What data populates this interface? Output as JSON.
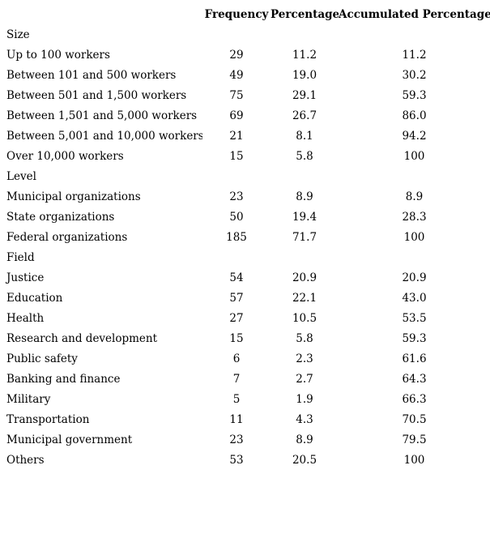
{
  "page": {
    "background_color": "#ffffff",
    "text_color": "#000000"
  },
  "table": {
    "columns": [
      "Frequency",
      "Percentage",
      "Accumulated Percentage"
    ],
    "sections": [
      {
        "label": "Size",
        "rows": [
          {
            "label": "Up to 100 workers",
            "frequency": "29",
            "percentage": "11.2",
            "accumulated": "11.2"
          },
          {
            "label": "Between 101 and 500 workers",
            "frequency": "49",
            "percentage": "19.0",
            "accumulated": "30.2"
          },
          {
            "label": "Between 501 and 1,500 workers",
            "frequency": "75",
            "percentage": "29.1",
            "accumulated": "59.3"
          },
          {
            "label": "Between 1,501 and 5,000 workers",
            "frequency": "69",
            "percentage": "26.7",
            "accumulated": "86.0"
          },
          {
            "label": "Between 5,001 and 10,000 workers",
            "frequency": "21",
            "percentage": "8.1",
            "accumulated": "94.2"
          },
          {
            "label": "Over 10,000 workers",
            "frequency": "15",
            "percentage": "5.8",
            "accumulated": "100"
          }
        ]
      },
      {
        "label": "Level",
        "rows": [
          {
            "label": "Municipal organizations",
            "frequency": "23",
            "percentage": "8.9",
            "accumulated": "8.9"
          },
          {
            "label": "State organizations",
            "frequency": "50",
            "percentage": "19.4",
            "accumulated": "28.3"
          },
          {
            "label": "Federal organizations",
            "frequency": "185",
            "percentage": "71.7",
            "accumulated": "100"
          }
        ]
      },
      {
        "label": "Field",
        "rows": [
          {
            "label": "Justice",
            "frequency": "54",
            "percentage": "20.9",
            "accumulated": "20.9"
          },
          {
            "label": "Education",
            "frequency": "57",
            "percentage": "22.1",
            "accumulated": "43.0"
          },
          {
            "label": "Health",
            "frequency": "27",
            "percentage": "10.5",
            "accumulated": "53.5"
          },
          {
            "label": "Research and development",
            "frequency": "15",
            "percentage": "5.8",
            "accumulated": "59.3"
          },
          {
            "label": "Public safety",
            "frequency": "6",
            "percentage": "2.3",
            "accumulated": "61.6"
          },
          {
            "label": "Banking and finance",
            "frequency": "7",
            "percentage": "2.7",
            "accumulated": "64.3"
          },
          {
            "label": "Military",
            "frequency": "5",
            "percentage": "1.9",
            "accumulated": "66.3"
          },
          {
            "label": "Transportation",
            "frequency": "11",
            "percentage": "4.3",
            "accumulated": "70.5"
          },
          {
            "label": "Municipal government",
            "frequency": "23",
            "percentage": "8.9",
            "accumulated": "79.5"
          },
          {
            "label": "Others",
            "frequency": "53",
            "percentage": "20.5",
            "accumulated": "100"
          }
        ]
      }
    ]
  }
}
